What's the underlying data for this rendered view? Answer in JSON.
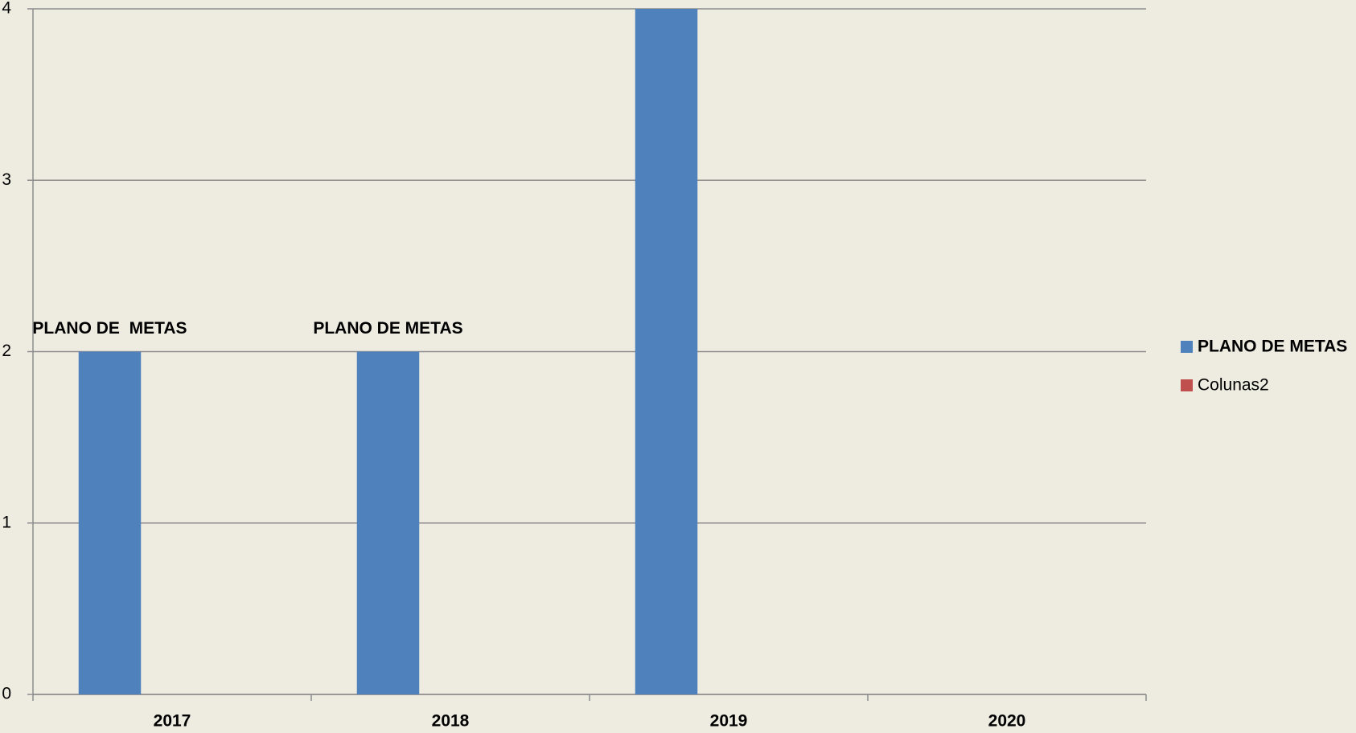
{
  "chart_data": {
    "type": "bar",
    "categories": [
      "2017",
      "2018",
      "2019",
      "2020"
    ],
    "series": [
      {
        "name": "PLANO DE METAS",
        "color": "#4f81bd",
        "values": [
          2,
          2,
          4,
          null
        ],
        "data_labels": [
          "PLANO DE  METAS",
          "PLANO DE METAS",
          null,
          null
        ]
      },
      {
        "name": "Colunas2",
        "color": "#c0504d",
        "values": [
          null,
          null,
          null,
          null
        ]
      }
    ],
    "ylim": [
      0,
      4
    ],
    "yticks": [
      0,
      1,
      2,
      3,
      4
    ],
    "grid": true,
    "legend": "right"
  }
}
